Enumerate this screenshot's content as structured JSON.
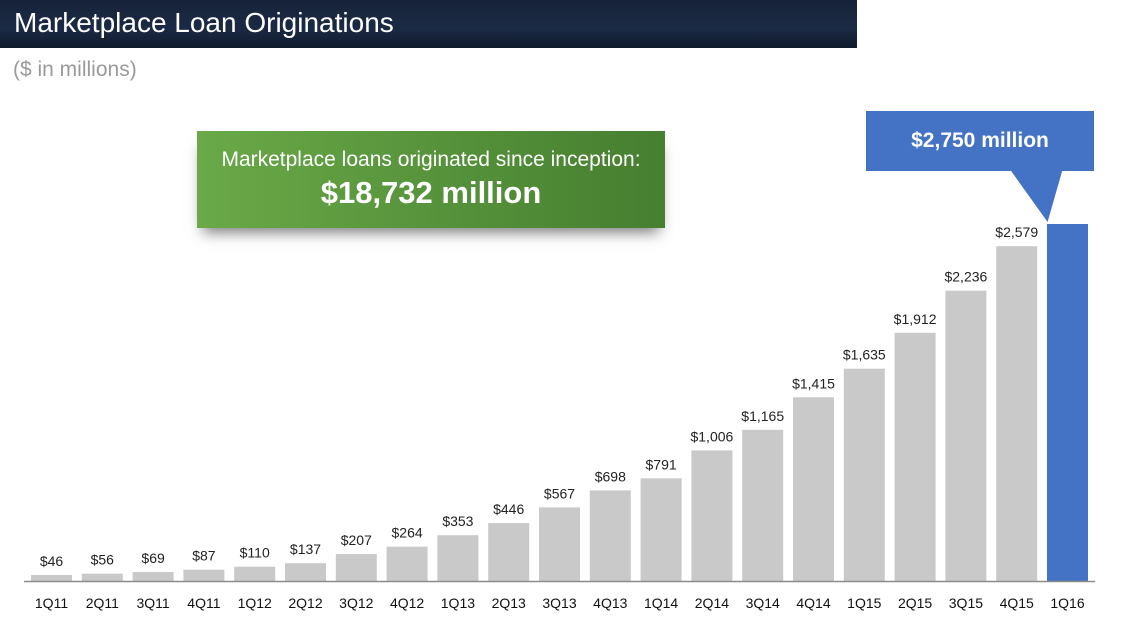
{
  "header": {
    "title": "Marketplace Loan Originations",
    "subtitle": "($ in millions)"
  },
  "callouts": {
    "inception_line1": "Marketplace loans originated since inception:",
    "inception_line2": "$18,732 million",
    "latest": "$2,750 million"
  },
  "colors": {
    "bar_default": "#c9c9c9",
    "bar_highlight": "#4472c4",
    "title_bar": "#1b2a44",
    "callout_green": "#5b9a3f"
  },
  "chart_data": {
    "type": "bar",
    "title": "Marketplace Loan Originations",
    "subtitle": "($ in millions)",
    "categories": [
      "1Q11",
      "2Q11",
      "3Q11",
      "4Q11",
      "1Q12",
      "2Q12",
      "3Q12",
      "4Q12",
      "1Q13",
      "2Q13",
      "3Q13",
      "4Q13",
      "1Q14",
      "2Q14",
      "3Q14",
      "4Q14",
      "1Q15",
      "2Q15",
      "3Q15",
      "4Q15",
      "1Q16"
    ],
    "values": [
      46,
      56,
      69,
      87,
      110,
      137,
      207,
      264,
      353,
      446,
      567,
      698,
      791,
      1006,
      1165,
      1415,
      1635,
      1912,
      2236,
      2579,
      2750
    ],
    "value_labels": [
      "$46",
      "$56",
      "$69",
      "$87",
      "$110",
      "$137",
      "$207",
      "$264",
      "$353",
      "$446",
      "$567",
      "$698",
      "$791",
      "$1,006",
      "$1,165",
      "$1,415",
      "$1,635",
      "$1,912",
      "$2,236",
      "$2,579",
      ""
    ],
    "highlight_index": 20,
    "ylim": [
      0,
      2750
    ],
    "xlabel": "",
    "ylabel": "",
    "grid": false,
    "legend": "none"
  }
}
